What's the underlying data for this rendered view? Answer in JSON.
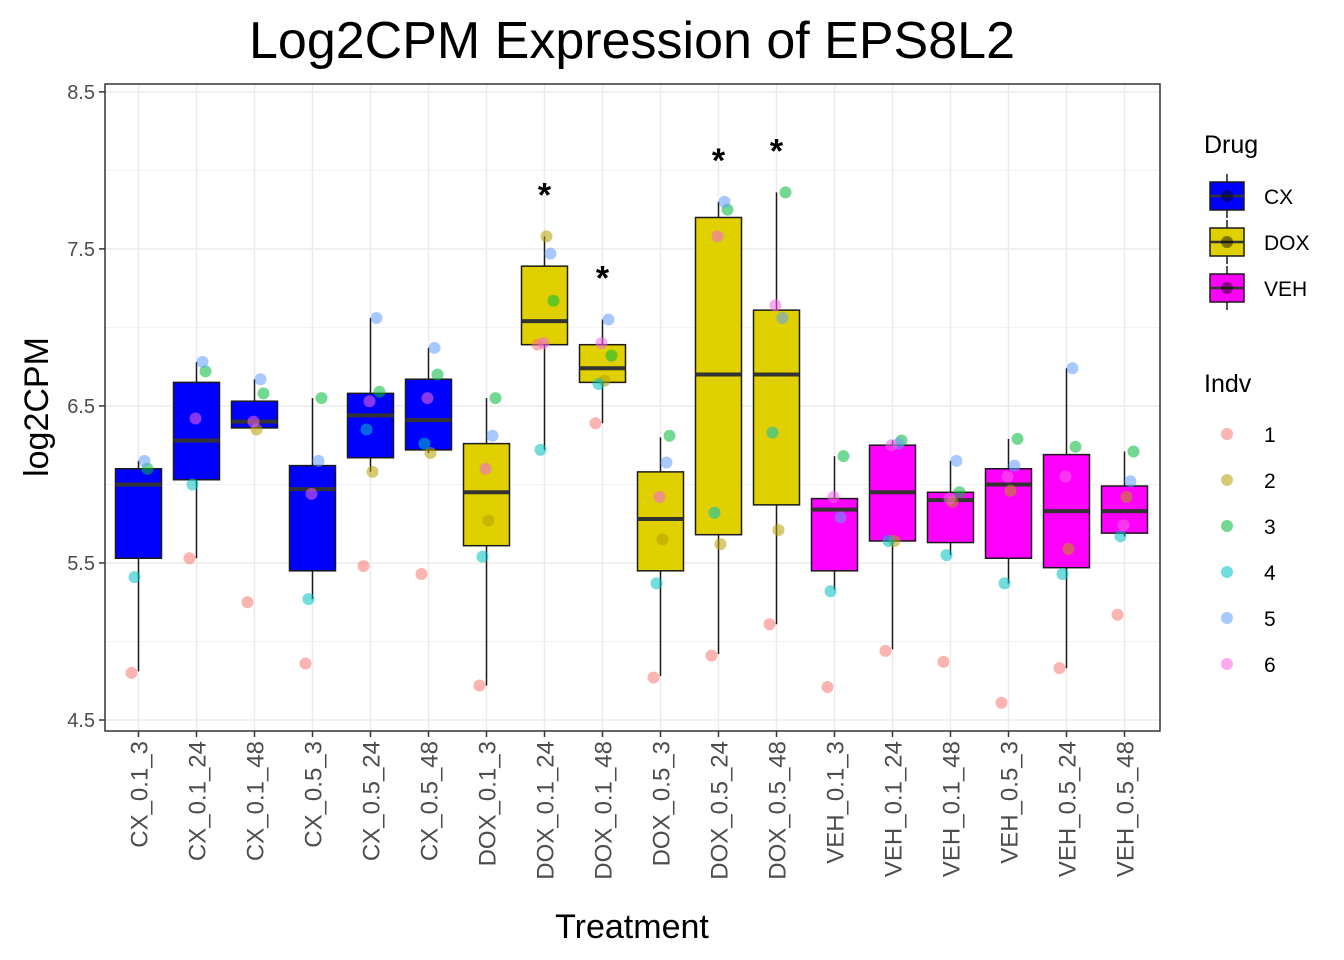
{
  "chart_data": {
    "type": "box",
    "title": "Log2CPM Expression of EPS8L2",
    "xlabel": "Treatment",
    "ylabel": "log2CPM",
    "ylim": [
      4.43,
      8.55
    ],
    "yticks": [
      4.5,
      5.5,
      6.5,
      7.5,
      8.5
    ],
    "yticklabels": [
      "4.5",
      "5.5",
      "6.5",
      "7.5",
      "8.5"
    ],
    "grid": true,
    "legend_position": "right",
    "annotation_symbol": "*",
    "drug_legend": {
      "title": "Drug",
      "entries": [
        {
          "label": "CX",
          "color": "#0000ff"
        },
        {
          "label": "DOX",
          "color": "#e0d000"
        },
        {
          "label": "VEH",
          "color": "#ff00ff"
        }
      ]
    },
    "indv_legend": {
      "title": "Indv",
      "entries": [
        {
          "label": "1",
          "color": "#f8766d"
        },
        {
          "label": "2",
          "color": "#b79f00"
        },
        {
          "label": "3",
          "color": "#00ba38"
        },
        {
          "label": "4",
          "color": "#00bfc4"
        },
        {
          "label": "5",
          "color": "#619cff"
        },
        {
          "label": "6",
          "color": "#f564e3"
        }
      ]
    },
    "categories": [
      {
        "label": "CX_0.1_3",
        "drug": "CX",
        "box": [
          4.81,
          5.53,
          6.0,
          6.1,
          6.15
        ],
        "points": [
          4.8,
          null,
          6.1,
          5.41,
          6.15,
          null
        ],
        "significant": false
      },
      {
        "label": "CX_0.1_24",
        "drug": "CX",
        "box": [
          5.53,
          6.03,
          6.28,
          6.65,
          6.78
        ],
        "points": [
          5.53,
          null,
          6.72,
          6.0,
          6.78,
          6.42
        ],
        "significant": false
      },
      {
        "label": "CX_0.1_48",
        "drug": "CX",
        "box": [
          6.36,
          6.36,
          6.4,
          6.53,
          6.67
        ],
        "points": [
          5.25,
          6.35,
          6.58,
          null,
          6.67,
          6.4
        ],
        "significant": false
      },
      {
        "label": "CX_0.5_3",
        "drug": "CX",
        "box": [
          5.27,
          5.45,
          5.97,
          6.12,
          6.55
        ],
        "points": [
          4.86,
          null,
          6.55,
          5.27,
          6.15,
          5.94
        ],
        "significant": false
      },
      {
        "label": "CX_0.5_24",
        "drug": "CX",
        "box": [
          6.08,
          6.17,
          6.44,
          6.58,
          7.06
        ],
        "points": [
          5.48,
          6.08,
          6.59,
          6.35,
          7.06,
          6.53
        ],
        "significant": false
      },
      {
        "label": "CX_0.5_48",
        "drug": "CX",
        "box": [
          6.2,
          6.22,
          6.41,
          6.67,
          6.87
        ],
        "points": [
          5.43,
          6.2,
          6.7,
          6.26,
          6.87,
          6.55
        ],
        "significant": false
      },
      {
        "label": "DOX_0.1_3",
        "drug": "DOX",
        "box": [
          4.72,
          5.61,
          5.95,
          6.26,
          6.55
        ],
        "points": [
          4.72,
          5.77,
          6.55,
          5.54,
          6.31,
          6.1
        ],
        "significant": false
      },
      {
        "label": "DOX_0.1_24",
        "drug": "DOX",
        "box": [
          6.22,
          6.89,
          7.04,
          7.39,
          7.58
        ],
        "points": [
          6.89,
          7.58,
          7.17,
          6.22,
          7.47,
          6.9
        ],
        "significant": true
      },
      {
        "label": "DOX_0.1_48",
        "drug": "DOX",
        "box": [
          6.39,
          6.65,
          6.74,
          6.89,
          7.05
        ],
        "points": [
          6.39,
          6.66,
          6.82,
          6.64,
          7.05,
          6.9
        ],
        "significant": true
      },
      {
        "label": "DOX_0.5_3",
        "drug": "DOX",
        "box": [
          4.78,
          5.45,
          5.78,
          6.08,
          6.3
        ],
        "points": [
          4.77,
          5.65,
          6.31,
          5.37,
          6.14,
          5.92
        ],
        "significant": false
      },
      {
        "label": "DOX_0.5_24",
        "drug": "DOX",
        "box": [
          4.92,
          5.68,
          6.7,
          7.7,
          7.8
        ],
        "points": [
          4.91,
          5.62,
          7.75,
          5.82,
          7.8,
          7.58
        ],
        "significant": true
      },
      {
        "label": "DOX_0.5_48",
        "drug": "DOX",
        "box": [
          5.11,
          5.87,
          6.7,
          7.11,
          7.86
        ],
        "points": [
          5.11,
          5.71,
          7.86,
          6.33,
          7.06,
          7.14
        ],
        "significant": true
      },
      {
        "label": "VEH_0.1_3",
        "drug": "VEH",
        "box": [
          5.33,
          5.45,
          5.84,
          5.91,
          6.18
        ],
        "points": [
          4.71,
          null,
          6.18,
          5.32,
          5.79,
          5.92
        ],
        "significant": false
      },
      {
        "label": "VEH_0.1_24",
        "drug": "VEH",
        "box": [
          4.95,
          5.64,
          5.95,
          6.25,
          6.28
        ],
        "points": [
          4.94,
          5.64,
          6.28,
          5.64,
          6.26,
          6.25
        ],
        "significant": false
      },
      {
        "label": "VEH_0.1_48",
        "drug": "VEH",
        "box": [
          5.55,
          5.63,
          5.9,
          5.95,
          6.15
        ],
        "points": [
          4.87,
          5.89,
          5.95,
          5.55,
          6.15,
          5.91
        ],
        "significant": false
      },
      {
        "label": "VEH_0.5_3",
        "drug": "VEH",
        "box": [
          5.37,
          5.53,
          6.0,
          6.1,
          6.29
        ],
        "points": [
          4.61,
          5.96,
          6.29,
          5.37,
          6.12,
          6.05
        ],
        "significant": false
      },
      {
        "label": "VEH_0.5_24",
        "drug": "VEH",
        "box": [
          4.83,
          5.47,
          5.83,
          6.19,
          6.74
        ],
        "points": [
          4.83,
          5.59,
          6.24,
          5.43,
          6.74,
          6.05
        ],
        "significant": false
      },
      {
        "label": "VEH_0.5_48",
        "drug": "VEH",
        "box": [
          5.67,
          5.69,
          5.83,
          5.99,
          6.21
        ],
        "points": [
          5.17,
          5.92,
          6.21,
          5.67,
          6.02,
          5.74
        ],
        "significant": false
      }
    ]
  }
}
